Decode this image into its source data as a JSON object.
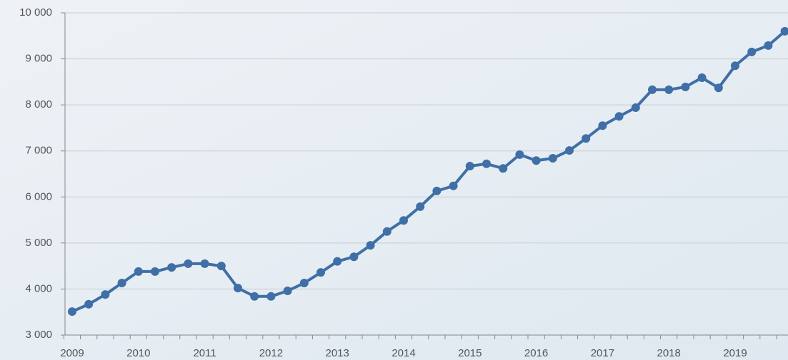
{
  "chart_data": {
    "type": "line",
    "categories": [
      "2009",
      null,
      null,
      null,
      "2010",
      null,
      null,
      null,
      "2011",
      null,
      null,
      null,
      "2012",
      null,
      null,
      null,
      "2013",
      null,
      null,
      null,
      "2014",
      null,
      null,
      null,
      "2015",
      null,
      null,
      null,
      "2016",
      null,
      null,
      null,
      "2017",
      null,
      null,
      null,
      "2018",
      null,
      null,
      null,
      "2019",
      null,
      null,
      null
    ],
    "values": [
      3510,
      3670,
      3880,
      4130,
      4380,
      4380,
      4470,
      4550,
      4550,
      4500,
      4020,
      3840,
      3840,
      3960,
      4130,
      4360,
      4600,
      4700,
      4950,
      5250,
      5490,
      5790,
      6130,
      6240,
      6670,
      6720,
      6620,
      6920,
      6790,
      6840,
      7010,
      7270,
      7550,
      7750,
      7940,
      8330,
      8330,
      8390,
      8590,
      8370,
      8850,
      9150,
      9290,
      9600
    ],
    "color": "#3f6fa6",
    "ylim": [
      3000,
      10000
    ],
    "yticks": [
      {
        "value": 3000,
        "label": "3 000"
      },
      {
        "value": 4000,
        "label": "4 000"
      },
      {
        "value": 5000,
        "label": "5 000"
      },
      {
        "value": 6000,
        "label": "6 000"
      },
      {
        "value": 7000,
        "label": "7 000"
      },
      {
        "value": 8000,
        "label": "8 000"
      },
      {
        "value": 9000,
        "label": "9 000"
      },
      {
        "value": 10000,
        "label": "10 000"
      }
    ],
    "grid": true
  }
}
